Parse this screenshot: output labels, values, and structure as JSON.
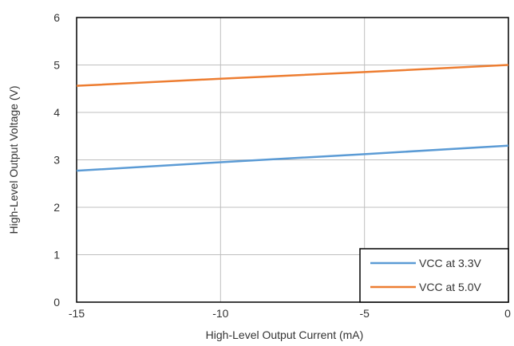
{
  "chart_data": {
    "type": "line",
    "title": "",
    "xlabel": "High-Level Output Current (mA)",
    "ylabel": "High-Level Output Voltage (V)",
    "xlim": [
      -15,
      0
    ],
    "ylim": [
      0,
      6
    ],
    "xticks": [
      -15,
      -10,
      -5,
      0
    ],
    "yticks": [
      0,
      1,
      2,
      3,
      4,
      5,
      6
    ],
    "grid": true,
    "legend_position": "bottom-right",
    "series": [
      {
        "name": "VCC at 3.3V",
        "color": "#5B9BD5",
        "x": [
          -15,
          -10,
          -5,
          0
        ],
        "y": [
          2.77,
          2.95,
          3.12,
          3.3
        ]
      },
      {
        "name": "VCC at 5.0V",
        "color": "#ED7D31",
        "x": [
          -15,
          -10,
          -5,
          0
        ],
        "y": [
          4.56,
          4.71,
          4.85,
          5.0
        ]
      }
    ]
  }
}
